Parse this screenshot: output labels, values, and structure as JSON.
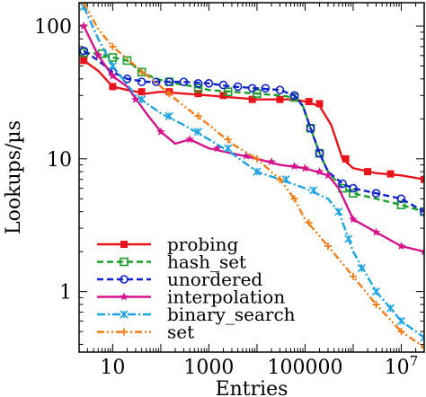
{
  "chart_data": {
    "type": "line",
    "title": "",
    "xlabel": "Entries",
    "ylabel": "Lookups/µs",
    "xscale": "log",
    "yscale": "log",
    "xlim": [
      2,
      30000000
    ],
    "ylim": [
      0.35,
      150
    ],
    "grid": false,
    "legend_position": "bottom-left",
    "x_ticks": [
      {
        "value": 10,
        "label": "10"
      },
      {
        "value": 1000,
        "label": "1000"
      },
      {
        "value": 100000,
        "label": "100000"
      },
      {
        "value": 10000000,
        "label": "10",
        "exponent": "7"
      }
    ],
    "y_ticks": [
      {
        "value": 1,
        "label": "1"
      },
      {
        "value": 10,
        "label": "10"
      },
      {
        "value": 100,
        "label": "100"
      }
    ],
    "series": [
      {
        "name": "probing",
        "color": "#e8141b",
        "dash": "solid",
        "marker": "filled-square",
        "points": [
          [
            2.5,
            55
          ],
          [
            5,
            46
          ],
          [
            10,
            35
          ],
          [
            20,
            33
          ],
          [
            50,
            31
          ],
          [
            100,
            32
          ],
          [
            300,
            31
          ],
          [
            1000,
            30
          ],
          [
            3000,
            29
          ],
          [
            10000,
            28
          ],
          [
            30000,
            28
          ],
          [
            60000,
            28
          ],
          [
            100000,
            27
          ],
          [
            200000,
            25
          ],
          [
            350000,
            18
          ],
          [
            600000,
            10
          ],
          [
            1000000,
            8.5
          ],
          [
            3000000,
            7.8
          ],
          [
            10000000,
            7.5
          ],
          [
            30000000,
            7
          ]
        ],
        "marker_points": [
          [
            2.5,
            55
          ],
          [
            10,
            35
          ],
          [
            40,
            32
          ],
          [
            150,
            32
          ],
          [
            600,
            31
          ],
          [
            2000,
            30
          ],
          [
            8000,
            28
          ],
          [
            30000,
            28
          ],
          [
            120000,
            27
          ],
          [
            200000,
            26
          ],
          [
            700000,
            10
          ],
          [
            2000000,
            8
          ],
          [
            6000000,
            7.7
          ],
          [
            30000000,
            7
          ]
        ]
      },
      {
        "name": "hash_set",
        "color": "#1a9e2c",
        "dash": "dashed",
        "marker": "open-square",
        "points": [
          [
            2.5,
            63
          ],
          [
            5,
            62
          ],
          [
            10,
            58
          ],
          [
            20,
            55
          ],
          [
            40,
            45
          ],
          [
            80,
            40
          ],
          [
            200,
            37
          ],
          [
            500,
            35
          ],
          [
            1000,
            33
          ],
          [
            3000,
            32
          ],
          [
            10000,
            31
          ],
          [
            30000,
            30
          ],
          [
            60000,
            29
          ],
          [
            90000,
            25
          ],
          [
            130000,
            17
          ],
          [
            200000,
            11
          ],
          [
            300000,
            8
          ],
          [
            600000,
            6
          ],
          [
            1000000,
            5.5
          ],
          [
            3000000,
            5
          ],
          [
            10000000,
            4.5
          ],
          [
            30000000,
            4
          ]
        ],
        "marker_points": [
          [
            2.5,
            63
          ],
          [
            6,
            62
          ],
          [
            10,
            58
          ],
          [
            20,
            55
          ],
          [
            40,
            45
          ],
          [
            150,
            38
          ],
          [
            600,
            34
          ],
          [
            2500,
            32
          ],
          [
            10000,
            31
          ],
          [
            60000,
            29
          ],
          [
            130000,
            17
          ],
          [
            200000,
            11
          ],
          [
            600000,
            6
          ],
          [
            1000000,
            5.5
          ],
          [
            10000000,
            4.5
          ],
          [
            30000000,
            4
          ]
        ]
      },
      {
        "name": "unordered",
        "color": "#1122cc",
        "dash": "dashed",
        "marker": "open-circle",
        "points": [
          [
            2.5,
            65
          ],
          [
            5,
            55
          ],
          [
            10,
            45
          ],
          [
            20,
            40
          ],
          [
            50,
            38
          ],
          [
            100,
            38
          ],
          [
            300,
            38
          ],
          [
            1000,
            37
          ],
          [
            3000,
            35
          ],
          [
            10000,
            34
          ],
          [
            30000,
            33
          ],
          [
            60000,
            30
          ],
          [
            90000,
            25
          ],
          [
            130000,
            17
          ],
          [
            200000,
            11
          ],
          [
            300000,
            8
          ],
          [
            600000,
            6.5
          ],
          [
            1000000,
            6
          ],
          [
            3000000,
            5.5
          ],
          [
            10000000,
            5
          ],
          [
            30000000,
            4
          ]
        ],
        "marker_points": [
          [
            2.5,
            65
          ],
          [
            10,
            45
          ],
          [
            20,
            40
          ],
          [
            40,
            38
          ],
          [
            80,
            38
          ],
          [
            150,
            38
          ],
          [
            300,
            38
          ],
          [
            600,
            37
          ],
          [
            1000,
            37
          ],
          [
            2000,
            36
          ],
          [
            4000,
            35
          ],
          [
            8000,
            34
          ],
          [
            15000,
            34
          ],
          [
            30000,
            33
          ],
          [
            60000,
            30
          ],
          [
            130000,
            17
          ],
          [
            200000,
            11
          ],
          [
            600000,
            6.5
          ],
          [
            1000000,
            6
          ],
          [
            3000000,
            5.5
          ],
          [
            10000000,
            5
          ],
          [
            30000000,
            4
          ]
        ]
      },
      {
        "name": "interpolation",
        "color": "#d4148c",
        "dash": "solid",
        "marker": "star",
        "points": [
          [
            2.5,
            100
          ],
          [
            5,
            60
          ],
          [
            10,
            42
          ],
          [
            20,
            35
          ],
          [
            50,
            22
          ],
          [
            100,
            16
          ],
          [
            200,
            13
          ],
          [
            400,
            14
          ],
          [
            1000,
            12
          ],
          [
            3000,
            11
          ],
          [
            10000,
            10
          ],
          [
            30000,
            9
          ],
          [
            100000,
            8.5
          ],
          [
            300000,
            7.5
          ],
          [
            500000,
            6
          ],
          [
            1000000,
            3.5
          ],
          [
            3000000,
            2.8
          ],
          [
            10000000,
            2.2
          ],
          [
            30000000,
            2
          ]
        ],
        "marker_points": [
          [
            2.5,
            100
          ],
          [
            5,
            60
          ],
          [
            10,
            42
          ],
          [
            30,
            28
          ],
          [
            100,
            16
          ],
          [
            400,
            14
          ],
          [
            1500,
            12
          ],
          [
            6000,
            10.5
          ],
          [
            20000,
            9.5
          ],
          [
            60000,
            8.8
          ],
          [
            100000,
            8.5
          ],
          [
            200000,
            8
          ],
          [
            300000,
            7.5
          ],
          [
            1000000,
            3.5
          ],
          [
            3000000,
            2.8
          ],
          [
            10000000,
            2.2
          ],
          [
            30000000,
            2
          ]
        ]
      },
      {
        "name": "binary_search",
        "color": "#1fa3e0",
        "dash": "dash-dot",
        "marker": "x-cross",
        "points": [
          [
            2.5,
            140
          ],
          [
            5,
            80
          ],
          [
            10,
            50
          ],
          [
            30,
            30
          ],
          [
            100,
            22
          ],
          [
            300,
            18
          ],
          [
            1000,
            14
          ],
          [
            3000,
            11
          ],
          [
            10000,
            8
          ],
          [
            30000,
            7
          ],
          [
            100000,
            6
          ],
          [
            300000,
            5
          ],
          [
            500000,
            4
          ],
          [
            1000000,
            2
          ],
          [
            3000000,
            1
          ],
          [
            10000000,
            0.6
          ],
          [
            30000000,
            0.45
          ]
        ],
        "marker_points": [
          [
            2.5,
            140
          ],
          [
            10,
            50
          ],
          [
            40,
            28
          ],
          [
            150,
            21
          ],
          [
            600,
            16
          ],
          [
            2500,
            12
          ],
          [
            10000,
            8
          ],
          [
            40000,
            7
          ],
          [
            150000,
            5.8
          ],
          [
            500000,
            4
          ],
          [
            800000,
            2.5
          ],
          [
            1500000,
            1.5
          ],
          [
            3000000,
            1
          ],
          [
            6000000,
            0.75
          ],
          [
            10000000,
            0.6
          ],
          [
            30000000,
            0.45
          ]
        ]
      },
      {
        "name": "set",
        "color": "#f07d1a",
        "dash": "dash-dot-dot",
        "marker": "plus",
        "points": [
          [
            2.5,
            150
          ],
          [
            5,
            95
          ],
          [
            10,
            70
          ],
          [
            30,
            50
          ],
          [
            100,
            35
          ],
          [
            300,
            25
          ],
          [
            1000,
            18
          ],
          [
            3000,
            13
          ],
          [
            10000,
            10
          ],
          [
            30000,
            7
          ],
          [
            60000,
            5
          ],
          [
            100000,
            3.5
          ],
          [
            300000,
            2.2
          ],
          [
            1000000,
            1.3
          ],
          [
            3000000,
            0.8
          ],
          [
            10000000,
            0.5
          ],
          [
            30000000,
            0.38
          ]
        ],
        "marker_points": [
          [
            2.5,
            150
          ],
          [
            10,
            70
          ],
          [
            40,
            45
          ],
          [
            150,
            31
          ],
          [
            600,
            21
          ],
          [
            2500,
            14
          ],
          [
            10000,
            10
          ],
          [
            30000,
            7
          ],
          [
            60000,
            5
          ],
          [
            120000,
            3.3
          ],
          [
            300000,
            2.2
          ],
          [
            1000000,
            1.3
          ],
          [
            3000000,
            0.8
          ],
          [
            10000000,
            0.5
          ],
          [
            30000000,
            0.38
          ]
        ]
      }
    ]
  }
}
